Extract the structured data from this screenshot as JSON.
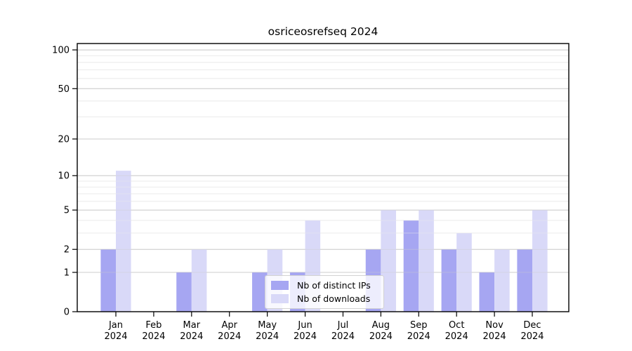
{
  "chart_data": {
    "type": "bar",
    "title": "osriceosrefseq 2024",
    "year": "2024",
    "categories": [
      "Jan",
      "Feb",
      "Mar",
      "Apr",
      "May",
      "Jun",
      "Jul",
      "Aug",
      "Sep",
      "Oct",
      "Nov",
      "Dec"
    ],
    "series": [
      {
        "name": "Nb of distinct IPs",
        "color": "#a6a6f2",
        "values": [
          2,
          0,
          1,
          0,
          1,
          1,
          0,
          2,
          4,
          2,
          1,
          2
        ]
      },
      {
        "name": "Nb of downloads",
        "color": "#d9d9f8",
        "values": [
          11,
          0,
          2,
          0,
          2,
          4,
          0,
          5,
          5,
          3,
          2,
          5
        ]
      }
    ],
    "yscale": "log1p",
    "yticks": [
      0,
      1,
      2,
      5,
      10,
      20,
      50,
      100
    ],
    "minor_yticks": [
      3,
      4,
      6,
      7,
      8,
      9,
      30,
      40,
      60,
      70,
      80,
      90
    ],
    "ylim": [
      0,
      112
    ],
    "xlabel": "",
    "ylabel": "",
    "grid": true,
    "legend_position": "lower center"
  },
  "colors": {
    "grid_major": "#cccccc",
    "grid_minor": "#ececec",
    "axis": "#000000",
    "background": "#ffffff"
  }
}
